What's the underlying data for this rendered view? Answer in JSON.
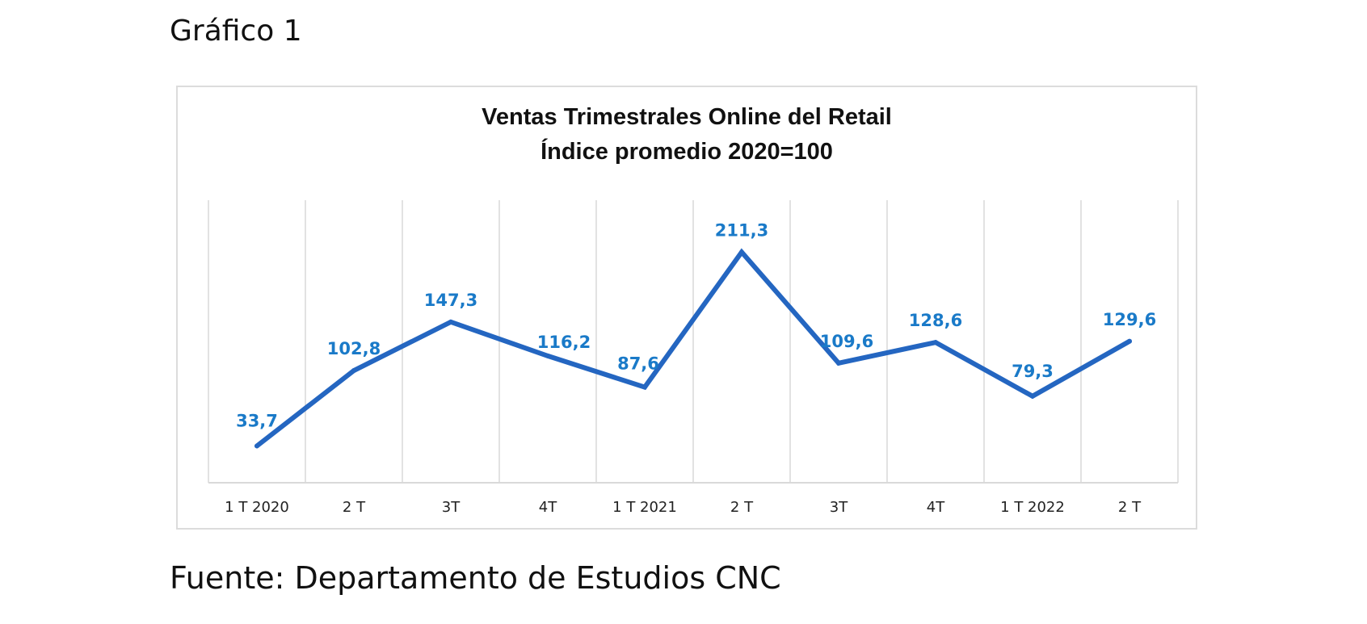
{
  "caption": "Gráfico 1",
  "source": "Fuente: Departamento de Estudios CNC",
  "colors": {
    "line": "#2466c1",
    "data_label": "#1a7ac8",
    "grid": "#d9d9d9",
    "frame": "#dcdcdc"
  },
  "chart_data": {
    "type": "line",
    "title": "Ventas Trimestrales Online del Retail",
    "subtitle": "Índice promedio 2020=100",
    "categories": [
      "1 T 2020",
      "2 T",
      "3T",
      "4T",
      "1 T 2021",
      "2 T",
      "3T",
      "4T",
      "1 T 2022",
      "2 T"
    ],
    "series": [
      {
        "values": [
          33.7,
          102.8,
          147.3,
          116.2,
          87.6,
          211.3,
          109.6,
          128.6,
          79.3,
          129.6
        ]
      }
    ],
    "data_labels": [
      "33,7",
      "102,8",
      "147,3",
      "116,2",
      "87,6",
      "211,3",
      "109,6",
      "128,6",
      "79,3",
      "129,6"
    ],
    "ylim": [
      0,
      250
    ],
    "grid": "vertical",
    "legend": "none"
  }
}
